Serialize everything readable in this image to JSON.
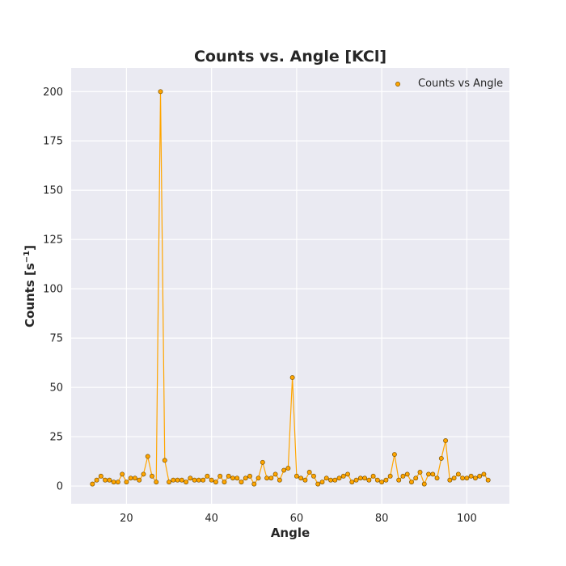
{
  "chart_data": {
    "type": "line",
    "title": "Counts vs. Angle [KCl]",
    "xlabel": "Angle",
    "ylabel_main": "Counts [s",
    "ylabel_sup": "−1",
    "ylabel_close": "]",
    "xlim": [
      7,
      110
    ],
    "ylim": [
      -9,
      212
    ],
    "xticks": [
      20,
      40,
      60,
      80,
      100
    ],
    "yticks": [
      0,
      25,
      50,
      75,
      100,
      125,
      150,
      175,
      200
    ],
    "grid": true,
    "legend_position": "top-right",
    "colors": {
      "plot_bg": "#eaeaf2",
      "grid": "#ffffff",
      "line": "#ffa500",
      "marker_edge": "#7a5200"
    },
    "series": [
      {
        "name": "Counts vs Angle",
        "x": [
          12,
          13,
          14,
          15,
          16,
          17,
          18,
          19,
          20,
          21,
          22,
          23,
          24,
          25,
          26,
          27,
          28,
          29,
          30,
          31,
          32,
          33,
          34,
          35,
          36,
          37,
          38,
          39,
          40,
          41,
          42,
          43,
          44,
          45,
          46,
          47,
          48,
          49,
          50,
          51,
          52,
          53,
          54,
          55,
          56,
          57,
          58,
          59,
          60,
          61,
          62,
          63,
          64,
          65,
          66,
          67,
          68,
          69,
          70,
          71,
          72,
          73,
          74,
          75,
          76,
          77,
          78,
          79,
          80,
          81,
          82,
          83,
          84,
          85,
          86,
          87,
          88,
          89,
          90,
          91,
          92,
          93,
          94,
          95,
          96,
          97,
          98,
          99,
          100,
          101,
          102,
          103,
          104,
          105
        ],
        "y": [
          1,
          3,
          5,
          3,
          3,
          2,
          2,
          6,
          2,
          4,
          4,
          3,
          6,
          15,
          5,
          2,
          200,
          13,
          2,
          3,
          3,
          3,
          2,
          4,
          3,
          3,
          3,
          5,
          3,
          2,
          5,
          2,
          5,
          4,
          4,
          2,
          4,
          5,
          1,
          4,
          12,
          4,
          4,
          6,
          3,
          8,
          9,
          55,
          5,
          4,
          3,
          7,
          5,
          1,
          2,
          4,
          3,
          3,
          4,
          5,
          6,
          2,
          3,
          4,
          4,
          3,
          5,
          3,
          2,
          3,
          5,
          16,
          3,
          5,
          6,
          2,
          4,
          7,
          1,
          6,
          6,
          4,
          14,
          23,
          3,
          4,
          6,
          4,
          4,
          5,
          4,
          5,
          6,
          3
        ]
      }
    ]
  }
}
